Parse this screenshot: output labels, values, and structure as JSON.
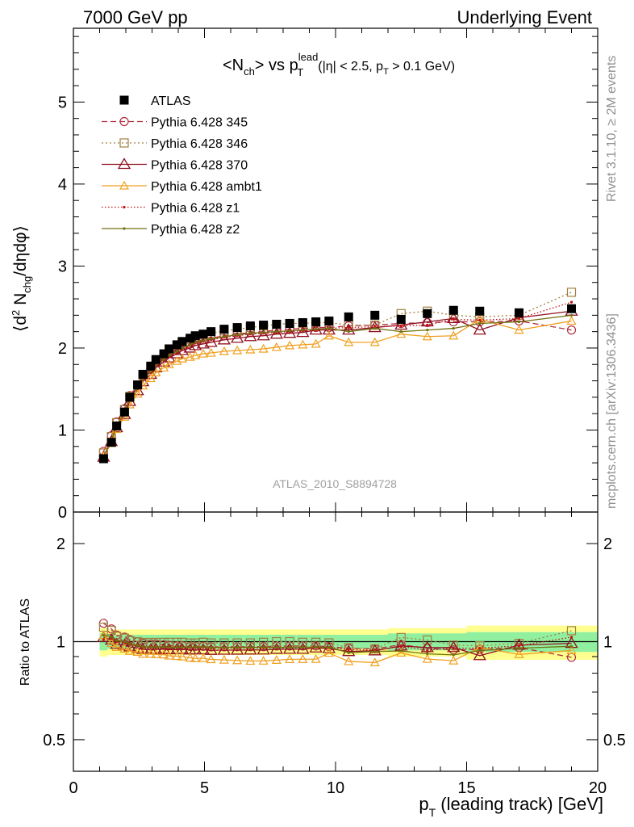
{
  "header": {
    "left": "7000 GeV pp",
    "right": "Underlying Event"
  },
  "title": {
    "main": "<N",
    "main_sub": "ch",
    "vs": "> vs p",
    "vs_sup": "lead",
    "vs_sub": "T",
    "cuts_a": "(|η| < 2.5, p",
    "cuts_sub": "T",
    "cuts_b": " > 0.1 GeV)"
  },
  "side_labels": {
    "rivet": "Rivet 3.1.10, ≥ 2M events",
    "mcplots": "mcplots.cern.ch [arXiv:1306.3436]"
  },
  "analysis_id": "ATLAS_2010_S8894728",
  "colors": {
    "atlas": "#000000",
    "p345": "#b03040",
    "p346": "#a08040",
    "p370": "#901020",
    "ambt1": "#f0a020",
    "z1": "#c01010",
    "z2": "#707010",
    "band_inner": "#90f0a0",
    "band_outer": "#ffff90"
  },
  "chart_data": [
    {
      "type": "scatter",
      "panel": "main",
      "ylabel": "⟨d² N_chg/dηdφ⟩",
      "ylim": [
        0,
        5.9
      ],
      "xlim": [
        0,
        20
      ],
      "yticks": [
        "0",
        "1",
        "2",
        "3",
        "4",
        "5"
      ],
      "legend_position": "top-left",
      "x": [
        1.15,
        1.45,
        1.65,
        1.95,
        2.15,
        2.45,
        2.65,
        2.95,
        3.15,
        3.45,
        3.65,
        3.95,
        4.15,
        4.45,
        4.65,
        4.95,
        5.25,
        5.75,
        6.25,
        6.75,
        7.25,
        7.75,
        8.25,
        8.75,
        9.25,
        9.75,
        10.5,
        11.5,
        12.5,
        13.5,
        14.5,
        15.5,
        17.0,
        19.0
      ],
      "series": [
        {
          "name": "ATLAS",
          "key": "atlas",
          "marker": "filled-square",
          "values": [
            0.65,
            0.85,
            1.05,
            1.22,
            1.4,
            1.55,
            1.68,
            1.78,
            1.86,
            1.93,
            1.99,
            2.04,
            2.08,
            2.12,
            2.15,
            2.17,
            2.2,
            2.23,
            2.25,
            2.27,
            2.28,
            2.29,
            2.3,
            2.31,
            2.32,
            2.33,
            2.38,
            2.4,
            2.35,
            2.42,
            2.46,
            2.45,
            2.43,
            2.48
          ]
        },
        {
          "name": "Pythia 6.428 345",
          "key": "p345",
          "marker": "open-circle",
          "dash": "7,4",
          "values": [
            0.74,
            0.93,
            1.1,
            1.26,
            1.42,
            1.55,
            1.66,
            1.75,
            1.83,
            1.89,
            1.94,
            1.98,
            2.02,
            2.05,
            2.08,
            2.1,
            2.12,
            2.15,
            2.17,
            2.19,
            2.2,
            2.22,
            2.23,
            2.24,
            2.25,
            2.25,
            2.27,
            2.28,
            2.3,
            2.31,
            2.32,
            2.32,
            2.33,
            2.22
          ]
        },
        {
          "name": "Pythia 6.428 346",
          "key": "p346",
          "marker": "open-square",
          "dash": "2,3",
          "values": [
            0.72,
            0.92,
            1.09,
            1.25,
            1.41,
            1.55,
            1.67,
            1.77,
            1.85,
            1.92,
            1.98,
            2.03,
            2.07,
            2.1,
            2.13,
            2.16,
            2.18,
            2.21,
            2.23,
            2.25,
            2.27,
            2.29,
            2.3,
            2.3,
            2.31,
            2.31,
            2.28,
            2.28,
            2.42,
            2.45,
            2.4,
            2.38,
            2.4,
            2.68
          ]
        },
        {
          "name": "Pythia 6.428 370",
          "key": "p370",
          "marker": "open-triangle",
          "dash": "",
          "values": [
            0.67,
            0.86,
            1.03,
            1.19,
            1.35,
            1.48,
            1.59,
            1.68,
            1.76,
            1.83,
            1.88,
            1.93,
            1.97,
            2.0,
            2.03,
            2.05,
            2.07,
            2.1,
            2.12,
            2.14,
            2.15,
            2.17,
            2.18,
            2.19,
            2.22,
            2.22,
            2.22,
            2.25,
            2.28,
            2.32,
            2.36,
            2.22,
            2.37,
            2.45
          ]
        },
        {
          "name": "Pythia 6.428 ambt1",
          "key": "ambt1",
          "marker": "open-triangle-small",
          "dash": "",
          "values": [
            0.68,
            0.84,
            1.01,
            1.16,
            1.31,
            1.44,
            1.54,
            1.63,
            1.7,
            1.76,
            1.8,
            1.84,
            1.87,
            1.89,
            1.91,
            1.93,
            1.94,
            1.96,
            1.97,
            1.98,
            1.99,
            2.01,
            2.03,
            2.04,
            2.05,
            2.15,
            2.07,
            2.07,
            2.17,
            2.14,
            2.15,
            2.35,
            2.22,
            2.33
          ]
        },
        {
          "name": "Pythia 6.428 z1",
          "key": "z1",
          "marker": "dot",
          "dash": "1.5,2.5",
          "values": [
            0.66,
            0.87,
            1.05,
            1.21,
            1.37,
            1.5,
            1.61,
            1.7,
            1.78,
            1.85,
            1.9,
            1.95,
            1.99,
            2.03,
            2.06,
            2.08,
            2.1,
            2.13,
            2.15,
            2.17,
            2.18,
            2.19,
            2.2,
            2.21,
            2.22,
            2.24,
            2.25,
            2.26,
            2.27,
            2.28,
            2.35,
            2.34,
            2.36,
            2.56
          ]
        },
        {
          "name": "Pythia 6.428 z2",
          "key": "z2",
          "marker": "dot",
          "dash": "",
          "values": [
            0.68,
            0.88,
            1.06,
            1.22,
            1.38,
            1.51,
            1.62,
            1.71,
            1.79,
            1.86,
            1.91,
            1.96,
            2.0,
            2.04,
            2.07,
            2.09,
            2.11,
            2.14,
            2.16,
            2.18,
            2.19,
            2.2,
            2.21,
            2.22,
            2.23,
            2.24,
            2.2,
            2.24,
            2.2,
            2.22,
            2.24,
            2.3,
            2.32,
            2.4
          ]
        }
      ]
    },
    {
      "type": "scatter",
      "panel": "ratio",
      "ylabel": "Ratio to ATLAS",
      "xlabel_main": "p",
      "xlabel_sub": "T",
      "xlabel_rest": " (leading track) [GeV]",
      "log_scale_y": true,
      "ylim": [
        0.4,
        2.5
      ],
      "xlim": [
        0,
        20
      ],
      "xticks": [
        "0",
        "5",
        "10",
        "15",
        "20"
      ],
      "yticks": [
        "0.5",
        "1",
        "2"
      ],
      "uncertainty_bands": {
        "x_edges": [
          1.0,
          1.3,
          1.6,
          1.8,
          2.1,
          2.3,
          2.6,
          2.8,
          3.1,
          3.3,
          3.6,
          3.8,
          4.1,
          4.3,
          4.6,
          4.8,
          5.1,
          5.5,
          6.0,
          6.5,
          7.0,
          7.5,
          8.0,
          8.5,
          9.0,
          9.5,
          10.0,
          11.0,
          12.0,
          13.0,
          14.0,
          15.0,
          16.0,
          18.0,
          20.0
        ],
        "inner": [
          0.06,
          0.05,
          0.05,
          0.05,
          0.05,
          0.05,
          0.05,
          0.05,
          0.05,
          0.05,
          0.05,
          0.05,
          0.05,
          0.05,
          0.05,
          0.05,
          0.05,
          0.05,
          0.05,
          0.05,
          0.05,
          0.05,
          0.05,
          0.05,
          0.05,
          0.05,
          0.05,
          0.05,
          0.06,
          0.06,
          0.06,
          0.07,
          0.07,
          0.07
        ],
        "outer": [
          0.1,
          0.09,
          0.09,
          0.09,
          0.09,
          0.09,
          0.09,
          0.09,
          0.09,
          0.09,
          0.09,
          0.09,
          0.09,
          0.09,
          0.09,
          0.09,
          0.09,
          0.09,
          0.09,
          0.09,
          0.09,
          0.09,
          0.09,
          0.09,
          0.09,
          0.09,
          0.09,
          0.09,
          0.1,
          0.1,
          0.1,
          0.12,
          0.12,
          0.12
        ]
      }
    }
  ]
}
